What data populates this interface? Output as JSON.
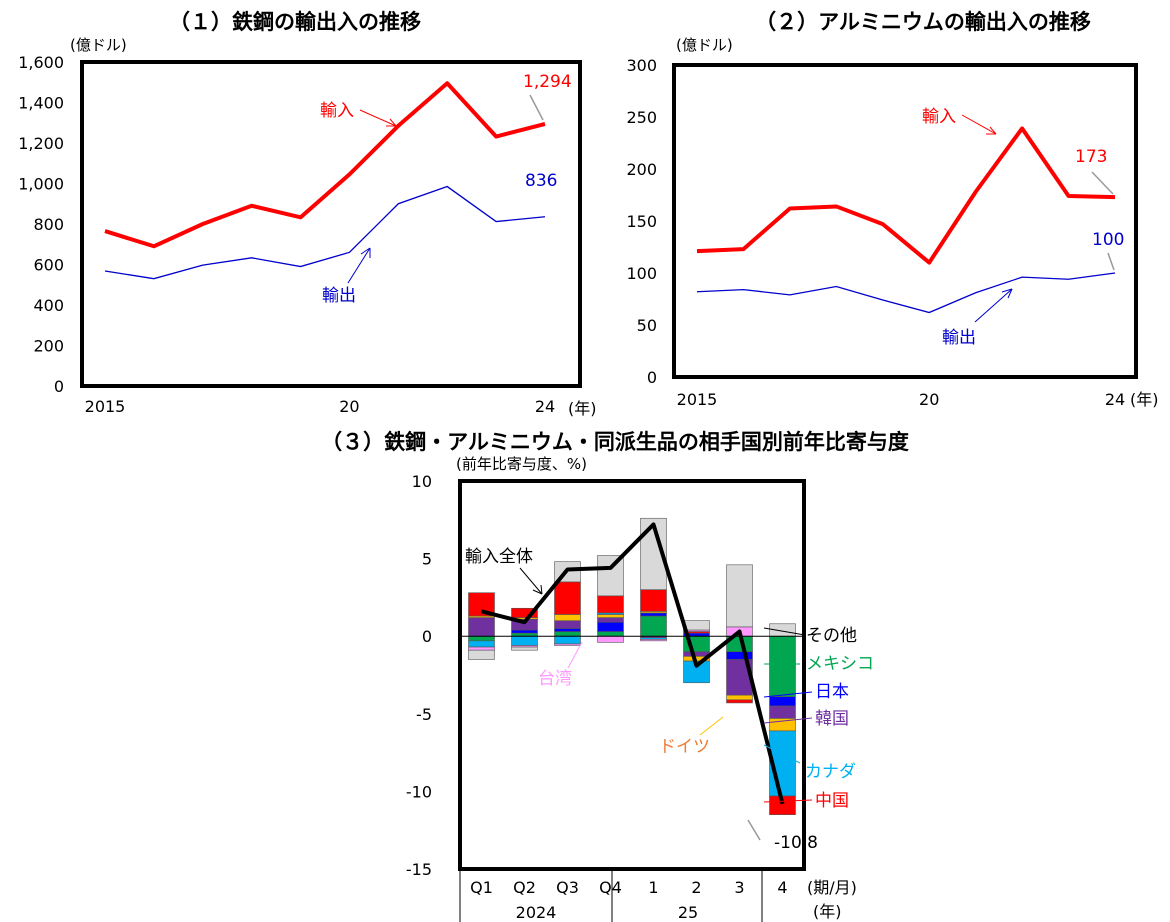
{
  "colors": {
    "import": "#ff0000",
    "export": "#0000cc",
    "total": "#000000",
    "other": "#d9d9d9",
    "mexico": "#00a650",
    "japan": "#0000ff",
    "korea": "#7030a0",
    "germany": "#ffc000",
    "canada": "#00b0f0",
    "china": "#ff0000",
    "taiwan": "#ff99ff"
  },
  "chart_data": [
    {
      "type": "line",
      "title": "（１）鉄鋼の輸出入の推移",
      "ylabel": "(億ドル)",
      "xlabel": "(年)",
      "x": [
        2015,
        2016,
        2017,
        2018,
        2019,
        2020,
        2021,
        2022,
        2023,
        2024
      ],
      "x_tick_labels": [
        "2015",
        "20",
        "24"
      ],
      "ylim": [
        0,
        1600
      ],
      "y_ticks": [
        "0",
        "200",
        "400",
        "600",
        "800",
        "1,000",
        "1,200",
        "1,400",
        "1,600"
      ],
      "series": [
        {
          "name": "輸入",
          "values": [
            765,
            690,
            800,
            890,
            833,
            1045,
            1285,
            1495,
            1232,
            1294
          ],
          "end_label": "1,294"
        },
        {
          "name": "輸出",
          "values": [
            568,
            530,
            597,
            633,
            590,
            660,
            900,
            985,
            812,
            836
          ],
          "end_label": "836"
        }
      ]
    },
    {
      "type": "line",
      "title": "（２）アルミニウムの輸出入の推移",
      "ylabel": "(億ドル)",
      "xlabel": "(年)",
      "x": [
        2015,
        2016,
        2017,
        2018,
        2019,
        2020,
        2021,
        2022,
        2023,
        2024
      ],
      "x_tick_labels": [
        "2015",
        "20",
        "24"
      ],
      "ylim": [
        0,
        300
      ],
      "y_ticks": [
        "0",
        "50",
        "100",
        "150",
        "200",
        "250",
        "300"
      ],
      "series": [
        {
          "name": "輸入",
          "values": [
            121,
            123,
            162,
            164,
            147,
            110,
            178,
            239,
            174,
            173
          ],
          "end_label": "173"
        },
        {
          "name": "輸出",
          "values": [
            82,
            84,
            79,
            87,
            74,
            62,
            81,
            96,
            94,
            100
          ],
          "end_label": "100"
        }
      ]
    },
    {
      "type": "bar",
      "stacked": true,
      "title": "（３）鉄鋼・アルミニウム・同派生品の相手国別前年比寄与度",
      "ylabel": "(前年比寄与度、%)",
      "xlabel": "(期/月)",
      "year_unit": "(年)",
      "categories": [
        "Q1",
        "Q2",
        "Q3",
        "Q4",
        "1",
        "2",
        "3",
        "4"
      ],
      "year_groups": [
        {
          "label": "2024",
          "span": [
            0,
            3
          ]
        },
        {
          "label": "25",
          "span": [
            4,
            7
          ]
        }
      ],
      "ylim": [
        -15,
        10
      ],
      "y_ticks": [
        "-15",
        "-10",
        "-5",
        "0",
        "5",
        "10"
      ],
      "segment_order": [
        "mexico",
        "japan",
        "korea",
        "germany",
        "canada",
        "china",
        "taiwan",
        "other"
      ],
      "series": [
        {
          "name": "メキシコ",
          "key": "mexico",
          "values": [
            -0.3,
            0.2,
            0.3,
            0.3,
            1.3,
            -1.0,
            -1.0,
            -3.9
          ]
        },
        {
          "name": "日本",
          "key": "japan",
          "values": [
            0.0,
            0.2,
            0.2,
            0.6,
            0.2,
            0.2,
            -0.5,
            -0.6
          ]
        },
        {
          "name": "韓国",
          "key": "korea",
          "values": [
            1.2,
            0.7,
            0.5,
            0.3,
            -0.1,
            -0.3,
            -2.3,
            -0.8
          ]
        },
        {
          "name": "ドイツ",
          "key": "germany",
          "values": [
            0.1,
            0.1,
            0.4,
            0.2,
            0.1,
            -0.3,
            -0.3,
            -0.8
          ]
        },
        {
          "name": "カナダ",
          "key": "canada",
          "values": [
            -0.4,
            -0.6,
            -0.5,
            0.1,
            -0.1,
            -1.4,
            0.0,
            -4.2
          ]
        },
        {
          "name": "中国",
          "key": "china",
          "values": [
            1.5,
            0.6,
            2.1,
            1.1,
            1.4,
            0.1,
            -0.2,
            -1.2
          ]
        },
        {
          "name": "台湾",
          "key": "taiwan",
          "values": [
            -0.2,
            -0.1,
            -0.1,
            -0.4,
            -0.1,
            0.1,
            0.6,
            0.0
          ]
        },
        {
          "name": "その他",
          "key": "other",
          "values": [
            -0.6,
            -0.2,
            1.3,
            2.6,
            4.6,
            0.6,
            4.0,
            0.8
          ]
        }
      ],
      "line": {
        "name": "輸入全体",
        "values": [
          1.6,
          0.9,
          4.3,
          4.4,
          7.2,
          -1.9,
          0.3,
          -10.8
        ],
        "end_label": "-10.8"
      }
    }
  ]
}
